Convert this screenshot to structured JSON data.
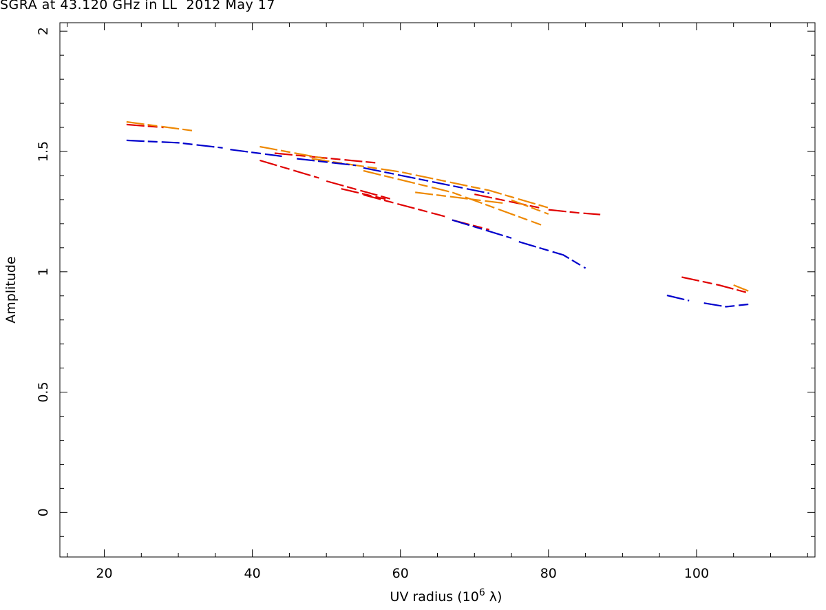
{
  "title": "SGRA at 43.120 GHz in LL  2012 May 17",
  "chart_data": {
    "type": "scatter",
    "title": "SGRA at 43.120 GHz in LL  2012 May 17",
    "xlabel": {
      "prefix": "UV radius  (10",
      "sup": "6",
      "suffix": " λ)"
    },
    "ylabel": "Amplitude",
    "xlim": [
      14,
      116
    ],
    "ylim": [
      -0.185,
      2.035
    ],
    "xticks": [
      20,
      40,
      60,
      80,
      100
    ],
    "xtick_labels": [
      "20",
      "40",
      "60",
      "80",
      "100"
    ],
    "x_minor_step": 5,
    "yticks": [
      0,
      0.5,
      1,
      1.5,
      2
    ],
    "ytick_labels": [
      "0",
      "0.5",
      "1",
      "1.5",
      "2"
    ],
    "y_minor_step": 0.1,
    "grid": false,
    "colors": {
      "red": "#e00000",
      "orange": "#ee8800",
      "blue": "#0000cc"
    },
    "series": [
      {
        "color": "red",
        "segments": [
          [
            [
              23,
              1.612
            ],
            [
              28,
              1.6
            ]
          ],
          [
            [
              41,
              1.463
            ],
            [
              49,
              1.39
            ]
          ],
          [
            [
              43,
              1.493
            ],
            [
              57,
              1.452
            ]
          ],
          [
            [
              50,
              1.377
            ],
            [
              59,
              1.3
            ]
          ],
          [
            [
              52,
              1.345
            ],
            [
              58,
              1.302
            ]
          ],
          [
            [
              55,
              1.32
            ],
            [
              66,
              1.23
            ]
          ],
          [
            [
              67,
              1.215
            ],
            [
              72,
              1.175
            ]
          ],
          [
            [
              70,
              1.322
            ],
            [
              79,
              1.265
            ]
          ],
          [
            [
              80,
              1.258
            ],
            [
              84,
              1.245
            ],
            [
              87,
              1.238
            ]
          ],
          [
            [
              98,
              0.978
            ],
            [
              103,
              0.945
            ],
            [
              107,
              0.912
            ]
          ]
        ]
      },
      {
        "color": "orange",
        "segments": [
          [
            [
              23,
              1.623
            ],
            [
              32,
              1.586
            ]
          ],
          [
            [
              41,
              1.52
            ],
            [
              50,
              1.469
            ]
          ],
          [
            [
              48,
              1.47
            ],
            [
              60,
              1.415
            ],
            [
              72,
              1.338
            ],
            [
              80,
              1.266
            ]
          ],
          [
            [
              55,
              1.42
            ],
            [
              67,
              1.33
            ],
            [
              79,
              1.195
            ]
          ],
          [
            [
              62,
              1.33
            ],
            [
              74,
              1.285
            ]
          ],
          [
            [
              75,
              1.298
            ],
            [
              80,
              1.24
            ]
          ],
          [
            [
              105,
              0.945
            ],
            [
              107,
              0.92
            ]
          ]
        ]
      },
      {
        "color": "blue",
        "segments": [
          [
            [
              23,
              1.546
            ],
            [
              30,
              1.536
            ],
            [
              36,
              1.515
            ]
          ],
          [
            [
              37,
              1.508
            ],
            [
              44,
              1.48
            ]
          ],
          [
            [
              46,
              1.47
            ],
            [
              54,
              1.442
            ]
          ],
          [
            [
              55,
              1.432
            ],
            [
              72,
              1.326
            ]
          ],
          [
            [
              67,
              1.215
            ],
            [
              75,
              1.14
            ]
          ],
          [
            [
              76,
              1.125
            ],
            [
              82,
              1.07
            ],
            [
              85,
              1.015
            ]
          ],
          [
            [
              96,
              0.902
            ],
            [
              99,
              0.88
            ]
          ],
          [
            [
              101,
              0.87
            ],
            [
              104,
              0.855
            ],
            [
              107,
              0.865
            ]
          ]
        ]
      }
    ]
  }
}
